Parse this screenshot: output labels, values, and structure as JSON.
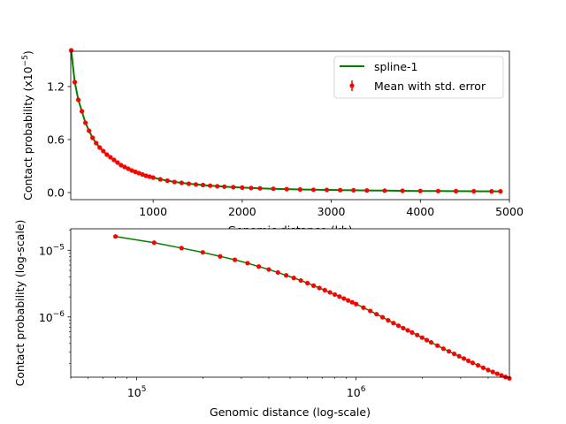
{
  "chart_data": [
    {
      "type": "line",
      "panel": "top",
      "xlabel": "Genomic distance (kb)",
      "ylabel": "Contact probability (x10^-5)",
      "ylabel_parts": {
        "base": "Contact probability (x10",
        "exp": "−5",
        "close": ")"
      },
      "xlim": [
        75,
        5000
      ],
      "ylim": [
        -0.08,
        1.6
      ],
      "xticks": [
        1000,
        2000,
        3000,
        4000,
        5000
      ],
      "xtick_labels": [
        "1000",
        "2000",
        "3000",
        "4000",
        "5000"
      ],
      "yticks": [
        0.0,
        0.6,
        1.2
      ],
      "ytick_labels": [
        "0.0",
        "0.6",
        "1.2"
      ],
      "legend": {
        "placement": "top-right",
        "entries": [
          "spline-1",
          "Mean with std. error"
        ]
      },
      "series": [
        {
          "name": "spline-1",
          "kind": "line",
          "color": "#008000"
        },
        {
          "name": "Mean with std. error",
          "kind": "errorbar",
          "color": "#ff0000"
        }
      ],
      "x": [
        80,
        120,
        160,
        200,
        240,
        280,
        320,
        360,
        400,
        440,
        480,
        520,
        560,
        600,
        640,
        680,
        720,
        760,
        800,
        840,
        880,
        920,
        960,
        1000,
        1080,
        1160,
        1240,
        1320,
        1400,
        1480,
        1560,
        1640,
        1720,
        1800,
        1900,
        2000,
        2100,
        2200,
        2350,
        2500,
        2650,
        2800,
        2950,
        3100,
        3250,
        3400,
        3600,
        3800,
        4000,
        4200,
        4400,
        4600,
        4800,
        4900
      ],
      "y": [
        1.61,
        1.25,
        1.05,
        0.92,
        0.79,
        0.7,
        0.62,
        0.56,
        0.51,
        0.47,
        0.43,
        0.4,
        0.37,
        0.34,
        0.31,
        0.29,
        0.27,
        0.25,
        0.235,
        0.22,
        0.205,
        0.19,
        0.18,
        0.17,
        0.15,
        0.135,
        0.12,
        0.11,
        0.1,
        0.092,
        0.085,
        0.078,
        0.072,
        0.067,
        0.061,
        0.056,
        0.052,
        0.048,
        0.043,
        0.039,
        0.035,
        0.032,
        0.03,
        0.028,
        0.026,
        0.024,
        0.022,
        0.02,
        0.018,
        0.017,
        0.016,
        0.015,
        0.014,
        0.014
      ]
    },
    {
      "type": "line",
      "panel": "bottom",
      "xlabel": "Genomic distance (log-scale)",
      "ylabel": "Contact probability (log-scale)",
      "xscale": "log",
      "yscale": "log",
      "xlim": [
        50000,
        5000000
      ],
      "ylim": [
        1.25e-07,
        2.1e-05
      ],
      "xticks": [
        100000,
        1000000
      ],
      "xtick_labels": [
        {
          "base": "10",
          "exp": "5"
        },
        {
          "base": "10",
          "exp": "6"
        }
      ],
      "yticks": [
        1e-06,
        1e-05
      ],
      "ytick_labels": [
        {
          "base": "10",
          "exp": "−6"
        },
        {
          "base": "10",
          "exp": "−5"
        }
      ],
      "series": [
        {
          "name": "spline-1",
          "kind": "line",
          "color": "#008000"
        },
        {
          "name": "Mean with std. error",
          "kind": "errorbar",
          "color": "#ff0000"
        }
      ],
      "x": [
        80000,
        120000,
        160000,
        200000,
        240000,
        280000,
        320000,
        360000,
        400000,
        440000,
        480000,
        520000,
        560000,
        600000,
        640000,
        680000,
        720000,
        760000,
        800000,
        840000,
        880000,
        920000,
        960000,
        1000000,
        1080000,
        1160000,
        1240000,
        1320000,
        1400000,
        1480000,
        1560000,
        1640000,
        1720000,
        1800000,
        1900000,
        2000000,
        2100000,
        2200000,
        2350000,
        2500000,
        2650000,
        2800000,
        2950000,
        3100000,
        3250000,
        3400000,
        3600000,
        3800000,
        4000000,
        4200000,
        4400000,
        4600000,
        4800000,
        5000000
      ],
      "y": [
        1.61e-05,
        1.3e-05,
        1.08e-05,
        9.3e-06,
        8.1e-06,
        7.2e-06,
        6.4e-06,
        5.7e-06,
        5.15e-06,
        4.65e-06,
        4.2e-06,
        3.85e-06,
        3.52e-06,
        3.22e-06,
        2.95e-06,
        2.72e-06,
        2.52e-06,
        2.34e-06,
        2.17e-06,
        2.02e-06,
        1.89e-06,
        1.77e-06,
        1.66e-06,
        1.56e-06,
        1.38e-06,
        1.23e-06,
        1.1e-06,
        9.9e-07,
        8.9e-07,
        8.1e-07,
        7.4e-07,
        6.8e-07,
        6.3e-07,
        5.85e-07,
        5.35e-07,
        4.9e-07,
        4.5e-07,
        4.15e-07,
        3.72e-07,
        3.35e-07,
        3.05e-07,
        2.8e-07,
        2.58e-07,
        2.38e-07,
        2.2e-07,
        2.05e-07,
        1.88e-07,
        1.73e-07,
        1.6e-07,
        1.5e-07,
        1.41e-07,
        1.33e-07,
        1.26e-07,
        1.2e-07
      ]
    }
  ]
}
